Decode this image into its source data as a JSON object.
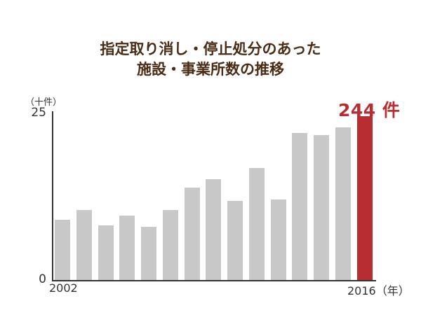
{
  "title": {
    "line1": "指定取り消し・停止処分のあった",
    "line2": "施設・事業所数の推移"
  },
  "axis": {
    "unit_label": "（十件）",
    "y_max_label": "25",
    "y_min_label": "0",
    "x_start_label": "2002",
    "x_end_label": "2016（年）"
  },
  "callout": "244 件",
  "colors": {
    "title": "#4a2c14",
    "bar": "#c8c8c8",
    "highlight": "#b72d32"
  },
  "chart_data": {
    "type": "bar",
    "title": "指定取り消し・停止処分のあった施設・事業所数の推移",
    "xlabel": "（年）",
    "ylabel": "（十件）",
    "ylim": [
      0,
      25
    ],
    "categories": [
      "2002",
      "2003",
      "2004",
      "2005",
      "2006",
      "2007",
      "2008",
      "2009",
      "2010",
      "2011",
      "2012",
      "2013",
      "2014",
      "2015",
      "2016"
    ],
    "values": [
      9.0,
      10.4,
      8.1,
      9.6,
      7.9,
      10.4,
      13.8,
      15.0,
      11.8,
      16.7,
      12.0,
      21.9,
      21.6,
      22.7,
      24.4
    ],
    "highlight_index": 14,
    "annotations": [
      {
        "category": "2016",
        "text": "244 件"
      }
    ],
    "y_ticks": [
      0,
      25
    ],
    "x_tick_labels_shown": [
      "2002",
      "2016"
    ],
    "grid": false,
    "legend": null
  }
}
